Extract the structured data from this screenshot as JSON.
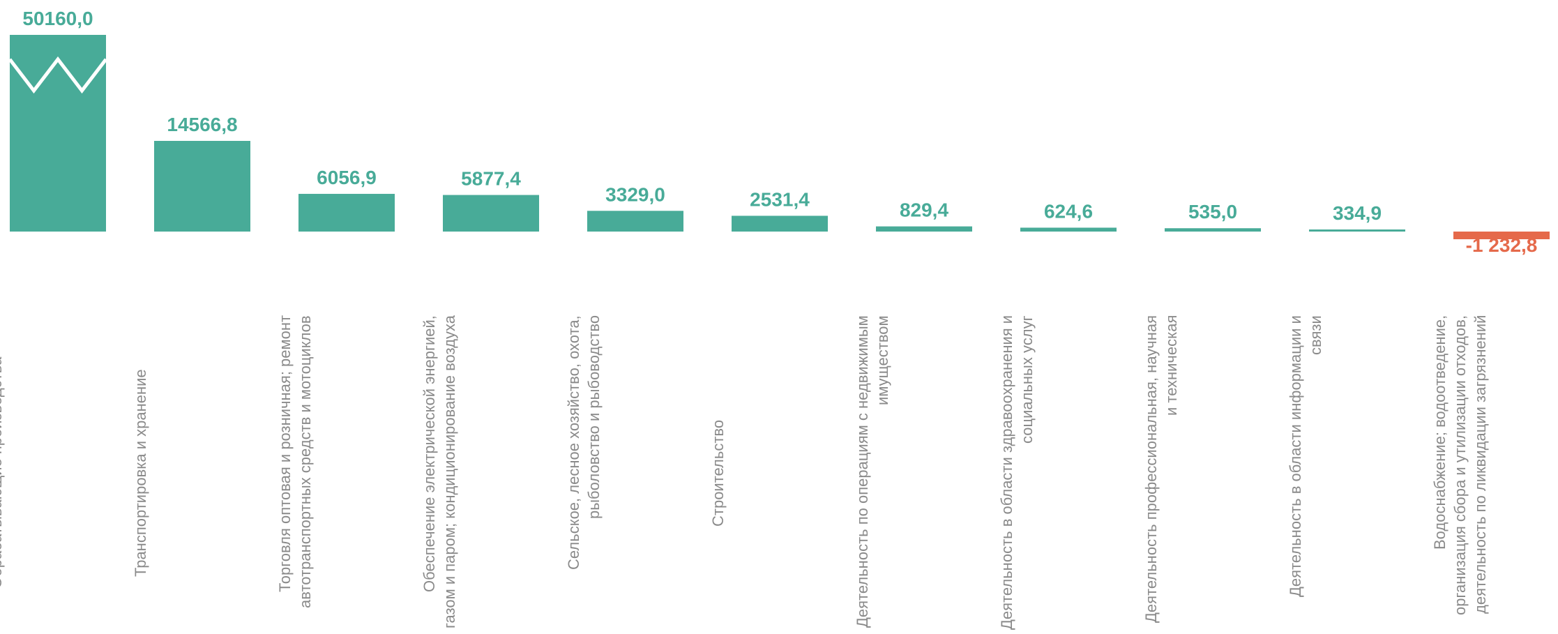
{
  "chart_data": {
    "type": "bar",
    "categories": [
      "Обрабатывающие производства",
      "Транспортировка и хранение",
      "Торговля оптовая и розничная; ремонт автотранспортных средств и мотоциклов",
      "Обеспечение электрической энергией, газом и паром; кондиционирование воздуха",
      "Сельское, лесное хозяйство, охота, рыболовство и рыбоводство",
      "Строительство",
      "Деятельность по операциям с недвижимым имуществом",
      "Деятельность в области здравоохранения и социальных услуг",
      "Деятельность профессиональная, научная и техническая",
      "Деятельность в области информации и связи",
      "Водоснабжение; водоотведение, организация сбора и утилизации отходов, деятельность по ликвидации загрязнений"
    ],
    "values": [
      50160.0,
      14566.8,
      6056.9,
      5877.4,
      3329.0,
      2531.4,
      829.4,
      624.6,
      535.0,
      334.9,
      -1232.8
    ],
    "value_labels": [
      "50160,0",
      "14566,8",
      "6056,9",
      "5877,4",
      "3329,0",
      "2531,4",
      "829,4",
      "624,6",
      "535,0",
      "334,9",
      "-1 232,8"
    ],
    "color": "#48ab98",
    "negative_color": "#e5694a",
    "axis_break": true
  }
}
